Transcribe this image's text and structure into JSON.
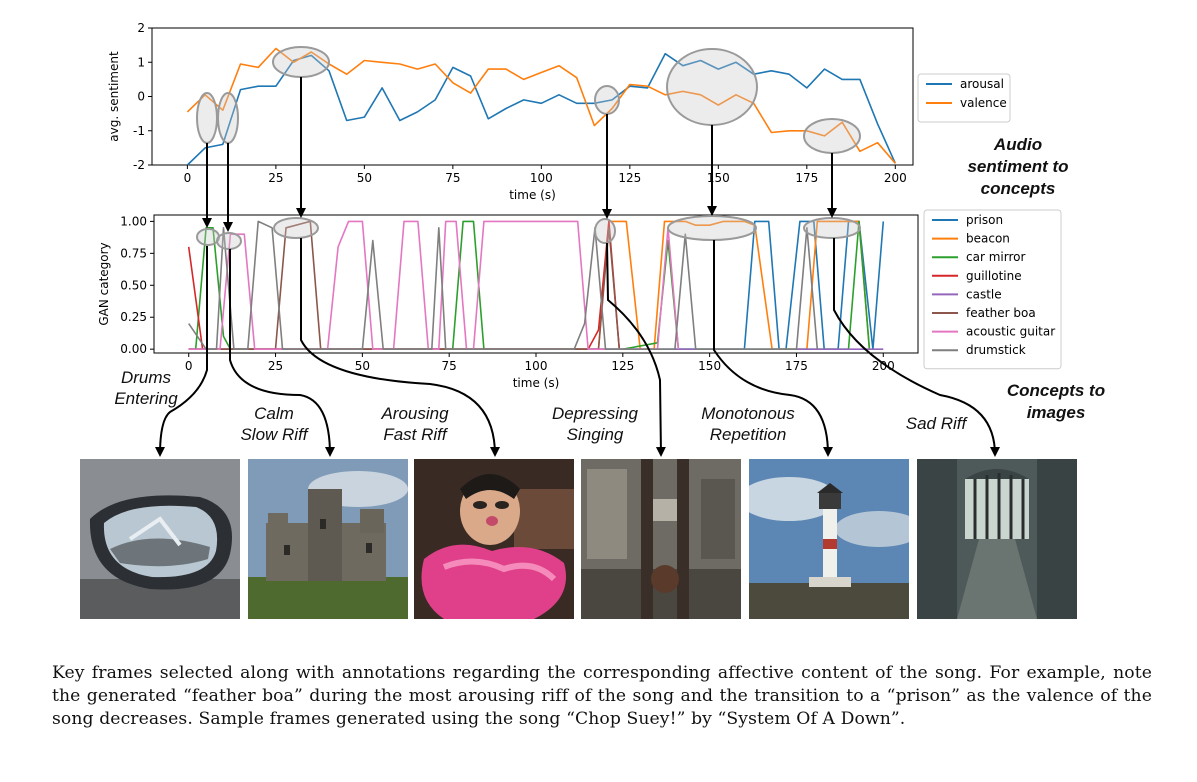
{
  "chart_data": [
    {
      "type": "line",
      "xlabel": "time (s)",
      "ylabel": "avg. sentiment",
      "xlim": [
        -10,
        205
      ],
      "ylim": [
        -2,
        2
      ],
      "xticks": [
        "0",
        "25",
        "50",
        "75",
        "100",
        "125",
        "150",
        "175",
        "200"
      ],
      "yticks": [
        "-2",
        "-1",
        "0",
        "1",
        "2"
      ],
      "legend_position": "right",
      "series": [
        {
          "name": "arousal",
          "color": "#1f77b4",
          "x": [
            0,
            5,
            10,
            15,
            20,
            25,
            30,
            35,
            40,
            45,
            50,
            55,
            60,
            65,
            70,
            75,
            80,
            85,
            90,
            95,
            100,
            105,
            110,
            115,
            120,
            125,
            130,
            135,
            140,
            145,
            150,
            155,
            160,
            165,
            170,
            175,
            180,
            185,
            190,
            195,
            200
          ],
          "y": [
            -2,
            -1.5,
            -1.4,
            0.2,
            0.3,
            0.3,
            1.05,
            1.2,
            0.75,
            -0.7,
            -0.6,
            0.25,
            -0.7,
            -0.45,
            -0.1,
            0.85,
            0.6,
            -0.65,
            -0.35,
            -0.1,
            -0.2,
            0.05,
            -0.2,
            -0.2,
            -0.1,
            0.3,
            0.25,
            1.25,
            0.9,
            1.05,
            0.8,
            1.0,
            0.65,
            0.75,
            0.65,
            0.25,
            0.8,
            0.5,
            0.5,
            -0.8,
            -1.95
          ]
        },
        {
          "name": "valence",
          "color": "#ff7f0e",
          "x": [
            0,
            5,
            10,
            15,
            20,
            25,
            30,
            35,
            40,
            45,
            50,
            55,
            60,
            65,
            70,
            75,
            80,
            85,
            90,
            95,
            100,
            105,
            110,
            115,
            120,
            125,
            130,
            135,
            140,
            145,
            150,
            155,
            160,
            165,
            170,
            175,
            180,
            185,
            190,
            195,
            200
          ],
          "y": [
            -0.45,
            0.05,
            -0.4,
            0.95,
            0.85,
            1.4,
            1.0,
            1.3,
            0.95,
            0.65,
            1.05,
            1.0,
            0.95,
            0.8,
            0.95,
            0.4,
            0.1,
            0.8,
            0.8,
            0.5,
            0.7,
            0.9,
            0.55,
            -0.85,
            -0.35,
            0.35,
            0.3,
            0.05,
            0.15,
            0.05,
            -0.25,
            0.05,
            -0.2,
            -1.05,
            -1.0,
            -1.0,
            -1.15,
            -0.75,
            -1.6,
            -1.35,
            -1.95
          ]
        }
      ]
    },
    {
      "type": "line",
      "xlabel": "time (s)",
      "ylabel": "GAN category",
      "xlim": [
        -10,
        210
      ],
      "ylim": [
        -0.03,
        1.05
      ],
      "xticks": [
        "0",
        "25",
        "50",
        "75",
        "100",
        "125",
        "150",
        "175",
        "200"
      ],
      "yticks": [
        "0.00",
        "0.25",
        "0.50",
        "0.75",
        "1.00"
      ],
      "legend_position": "right",
      "series": [
        {
          "name": "prison",
          "color": "#1f77b4",
          "x": [
            0,
            160,
            163,
            167,
            170,
            172,
            176,
            180,
            183,
            187,
            190,
            193,
            197,
            200
          ],
          "y": [
            0,
            0,
            1,
            1,
            0,
            0,
            1,
            1,
            0,
            0,
            1,
            1,
            0,
            1
          ]
        },
        {
          "name": "beacon",
          "color": "#ff7f0e",
          "x": [
            0,
            118,
            121,
            126,
            130,
            134,
            137,
            143,
            146,
            150,
            154,
            160,
            163,
            168,
            178,
            181,
            193,
            196
          ],
          "y": [
            0,
            0,
            1,
            1,
            0,
            0,
            1,
            1,
            0.97,
            0.97,
            1,
            1,
            0.97,
            0,
            0,
            1,
            1,
            0
          ]
        },
        {
          "name": "car mirror",
          "color": "#2ca02c",
          "x": [
            0,
            2,
            5,
            7,
            10,
            12,
            76,
            79,
            82,
            85,
            125,
            135,
            138,
            141,
            190,
            193,
            196
          ],
          "y": [
            0,
            0,
            0.95,
            0.95,
            0.1,
            0,
            0,
            1,
            1,
            0,
            0,
            0.05,
            0.85,
            0,
            0,
            1,
            0
          ]
        },
        {
          "name": "guillotine",
          "color": "#d62728",
          "x": [
            0,
            4,
            7,
            115,
            118,
            121,
            124
          ],
          "y": [
            0.8,
            0,
            0,
            0,
            0.15,
            1,
            0
          ]
        },
        {
          "name": "castle",
          "color": "#9467bd",
          "x": [
            0,
            200
          ],
          "y": [
            0,
            0
          ]
        },
        {
          "name": "feather boa",
          "color": "#8c564b",
          "x": [
            0,
            25,
            28,
            35,
            38,
            118,
            121,
            124
          ],
          "y": [
            0,
            0,
            0.95,
            1,
            0,
            0,
            0.95,
            0
          ]
        },
        {
          "name": "acoustic guitar",
          "color": "#e377c2",
          "x": [
            0,
            9,
            12,
            16,
            19,
            40,
            43,
            46,
            50,
            53,
            59,
            62,
            66,
            69,
            72,
            74,
            77,
            80,
            82,
            85,
            87,
            102,
            112,
            115,
            118,
            135,
            138,
            141
          ],
          "y": [
            0,
            0,
            0.9,
            0.9,
            0,
            0,
            0.8,
            1,
            1,
            0,
            0,
            1,
            1,
            0,
            0,
            1,
            1,
            0,
            0,
            1,
            1,
            1,
            1,
            0,
            0,
            0,
            0.95,
            0
          ]
        },
        {
          "name": "drumstick",
          "color": "#7f7f7f",
          "x": [
            0,
            5,
            8,
            10,
            13,
            17,
            20,
            24,
            27,
            30,
            33,
            50,
            53,
            56,
            59,
            70,
            72,
            74,
            111,
            114,
            117,
            120,
            123,
            140,
            143,
            146,
            175,
            178,
            181
          ],
          "y": [
            0.2,
            0,
            0,
            0.95,
            0,
            0,
            1,
            0.95,
            0,
            0,
            0,
            0,
            0.85,
            0,
            0,
            0,
            0.95,
            0,
            0,
            0.2,
            0.95,
            0,
            0,
            0,
            0.9,
            0,
            0,
            0.95,
            0
          ]
        }
      ]
    }
  ],
  "panel_headers": {
    "audio_to_concepts": [
      "Audio",
      "sentiment to",
      "concepts"
    ],
    "concepts_to_images": [
      "Concepts to",
      "images"
    ]
  },
  "annotations": [
    {
      "lines": [
        "Drums",
        "Entering"
      ]
    },
    {
      "lines": [
        "Calm",
        "Slow Riff"
      ]
    },
    {
      "lines": [
        "Arousing",
        "Fast Riff"
      ]
    },
    {
      "lines": [
        "Depressing",
        "Singing"
      ]
    },
    {
      "lines": [
        "Monotonous",
        "Repetition"
      ]
    },
    {
      "lines": [
        "Sad Riff"
      ]
    }
  ],
  "frames": [
    {
      "subject": "car mirror"
    },
    {
      "subject": "castle"
    },
    {
      "subject": "feather boa"
    },
    {
      "subject": "guillotine"
    },
    {
      "subject": "beacon"
    },
    {
      "subject": "prison"
    }
  ],
  "caption": "Key frames selected along with annotations regarding the corresponding affective content of the song. For example, note the generated “feather boa” during the most arousing riff of the song and the transition to a “prison” as the valence of the song decreases. Sample frames generated using the song “Chop Suey!” by “System Of A Down”."
}
